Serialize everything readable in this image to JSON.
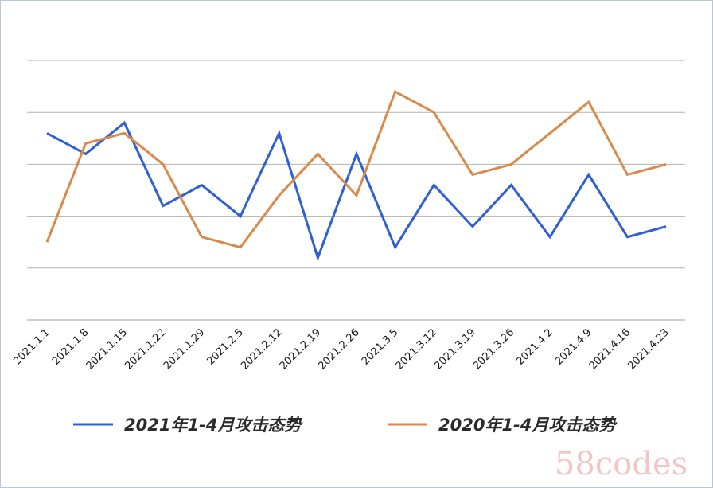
{
  "chart_data": {
    "type": "line",
    "categories": [
      "2021.1.1",
      "2021.1.8",
      "2021.1.15",
      "2021.1.22",
      "2021.1.29",
      "2021.2.5",
      "2021.2.12",
      "2021.2.19",
      "2021.2.26",
      "2021.3.5",
      "2021.3.12",
      "2021.3.19",
      "2021.3.26",
      "2021.4.2",
      "2021.4.9",
      "2021.4.16",
      "2021.4.23"
    ],
    "series": [
      {
        "name": "2021年1-4月攻击态势",
        "color": "#2f5fd6",
        "values": [
          3.6,
          3.2,
          3.8,
          2.2,
          2.6,
          2.0,
          3.6,
          1.2,
          3.2,
          1.4,
          2.6,
          1.8,
          2.6,
          1.6,
          2.8,
          1.6,
          1.8
        ]
      },
      {
        "name": "2020年1-4月攻击态势",
        "color": "#d98a4a",
        "values": [
          1.5,
          3.4,
          3.6,
          3.0,
          1.6,
          1.4,
          2.4,
          3.2,
          2.4,
          4.4,
          4.0,
          2.8,
          3.0,
          3.6,
          4.2,
          2.8,
          3.0
        ]
      }
    ],
    "ylim": [
      0,
      5
    ],
    "grid": true,
    "legend": "bottom"
  },
  "watermark": "58codes"
}
